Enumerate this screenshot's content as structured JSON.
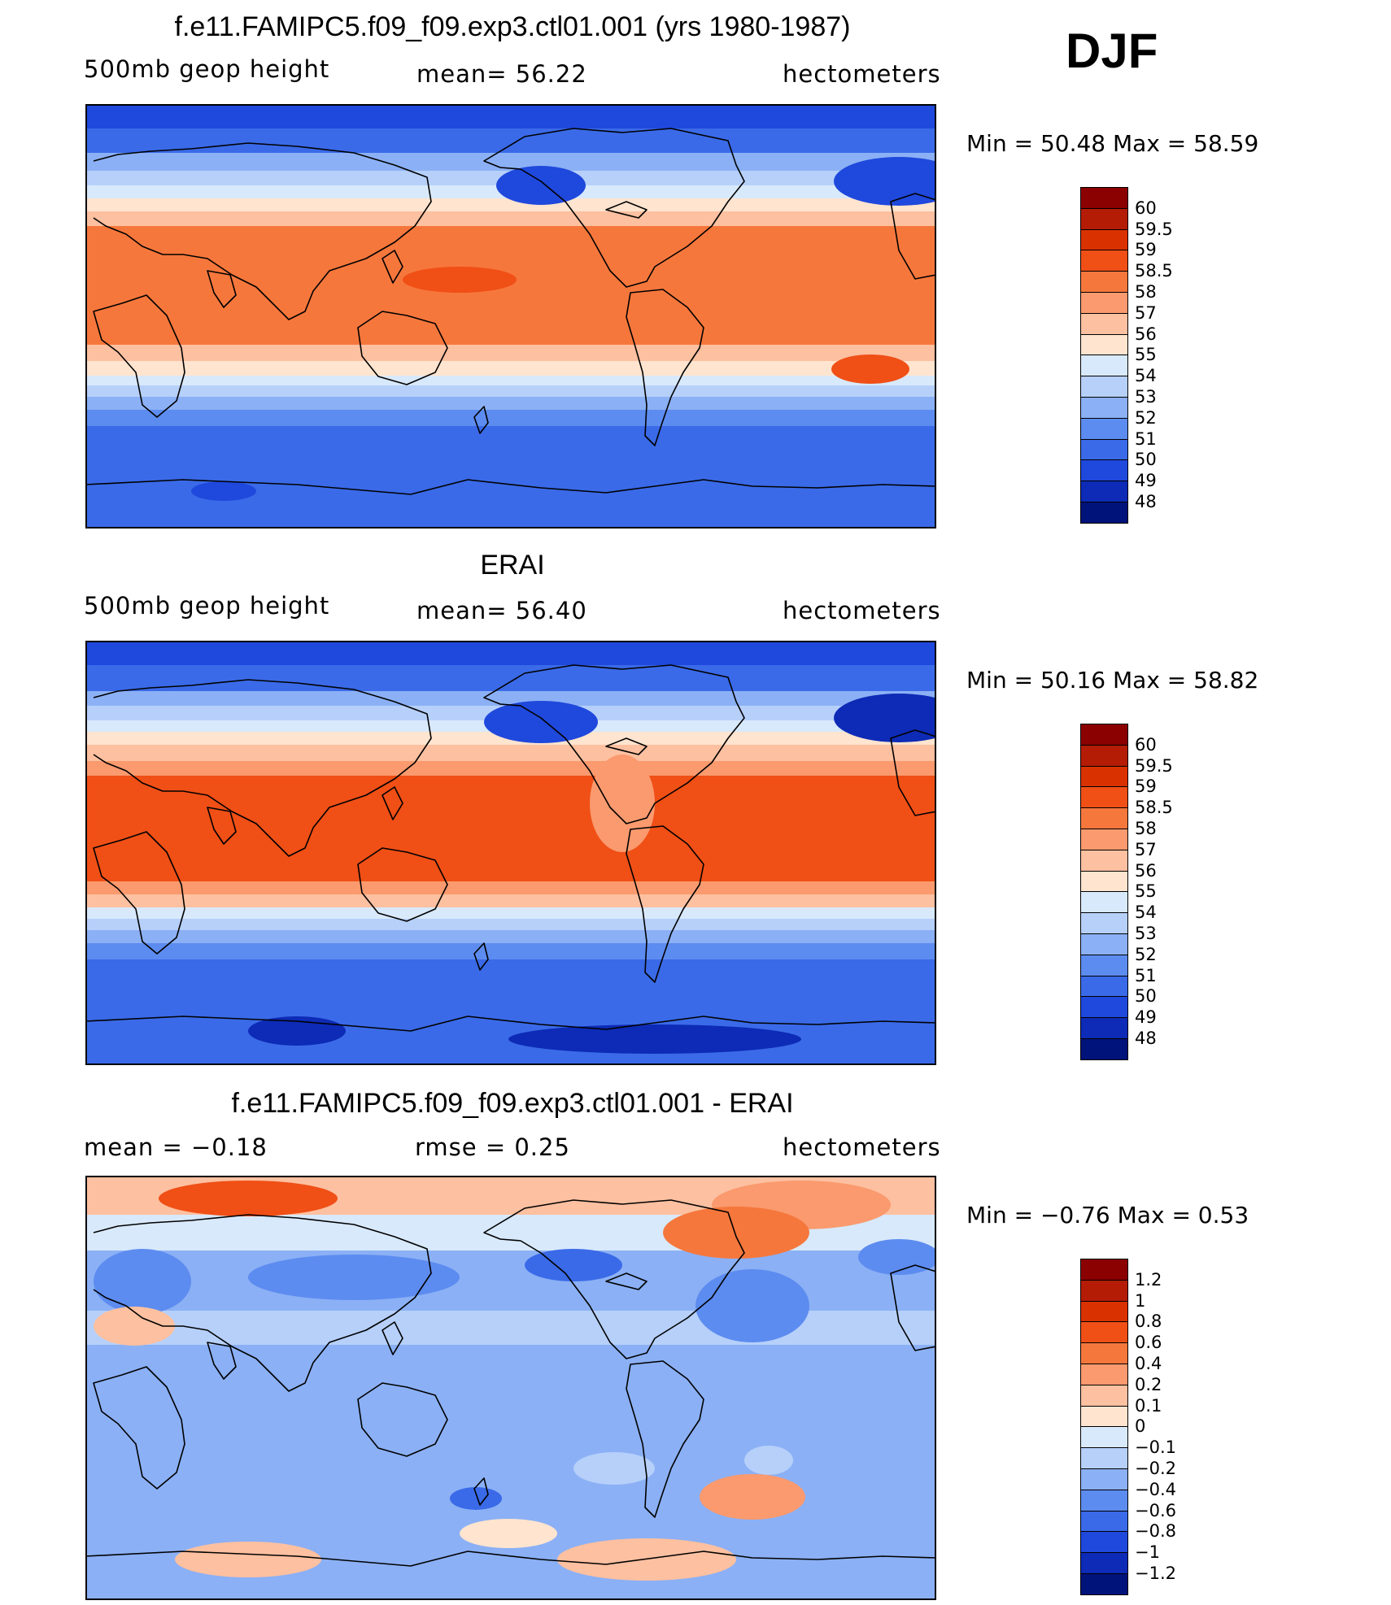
{
  "season": "DJF",
  "panels": [
    {
      "title": "f.e11.FAMIPC5.f09_f09.exp3.ctl01.001 (yrs 1980-1987)",
      "left_label": "500mb geop height",
      "center_label": "mean=   56.22",
      "right_label": "hectometers",
      "minmax": "Min =   50.48  Max =   58.59",
      "colorbar": {
        "labels": [
          "60",
          "59.5",
          "59",
          "58.5",
          "58",
          "57",
          "56",
          "55",
          "54",
          "53",
          "52",
          "51",
          "50",
          "49",
          "48"
        ],
        "colors": [
          "#8b0000",
          "#b41c06",
          "#d93200",
          "#f04f16",
          "#f6773c",
          "#fa9a6e",
          "#fdc0a0",
          "#ffe4cf",
          "#d8e9fb",
          "#b6d0fa",
          "#8bb0f5",
          "#5d8cf0",
          "#3a6ae8",
          "#1f48dc",
          "#0d2bb6",
          "#00137a"
        ]
      },
      "map_variant": "model"
    },
    {
      "title": "ERAI",
      "left_label": "500mb geop height",
      "center_label": "mean=   56.40",
      "right_label": "hectometers",
      "minmax": "Min =   50.16  Max =   58.82",
      "colorbar": {
        "labels": [
          "60",
          "59.5",
          "59",
          "58.5",
          "58",
          "57",
          "56",
          "55",
          "54",
          "53",
          "52",
          "51",
          "50",
          "49",
          "48"
        ],
        "colors": [
          "#8b0000",
          "#b41c06",
          "#d93200",
          "#f04f16",
          "#f6773c",
          "#fa9a6e",
          "#fdc0a0",
          "#ffe4cf",
          "#d8e9fb",
          "#b6d0fa",
          "#8bb0f5",
          "#5d8cf0",
          "#3a6ae8",
          "#1f48dc",
          "#0d2bb6",
          "#00137a"
        ]
      },
      "map_variant": "obs"
    },
    {
      "title": "f.e11.FAMIPC5.f09_f09.exp3.ctl01.001 - ERAI",
      "left_label": "mean =   −0.18",
      "center_label": "rmse =     0.25",
      "right_label": "hectometers",
      "minmax": "Min =   −0.76  Max =      0.53",
      "colorbar": {
        "labels": [
          "1.2",
          "1",
          "0.8",
          "0.6",
          "0.4",
          "0.2",
          "0.1",
          "0",
          "−0.1",
          "−0.2",
          "−0.4",
          "−0.6",
          "−0.8",
          "−1",
          "−1.2"
        ],
        "colors": [
          "#8b0000",
          "#b41c06",
          "#d93200",
          "#f04f16",
          "#f6773c",
          "#fa9a6e",
          "#fdc0a0",
          "#ffe4cf",
          "#d8e9fb",
          "#b6d0fa",
          "#8bb0f5",
          "#5d8cf0",
          "#3a6ae8",
          "#1f48dc",
          "#0d2bb6",
          "#00137a"
        ]
      },
      "map_variant": "diff"
    }
  ]
}
